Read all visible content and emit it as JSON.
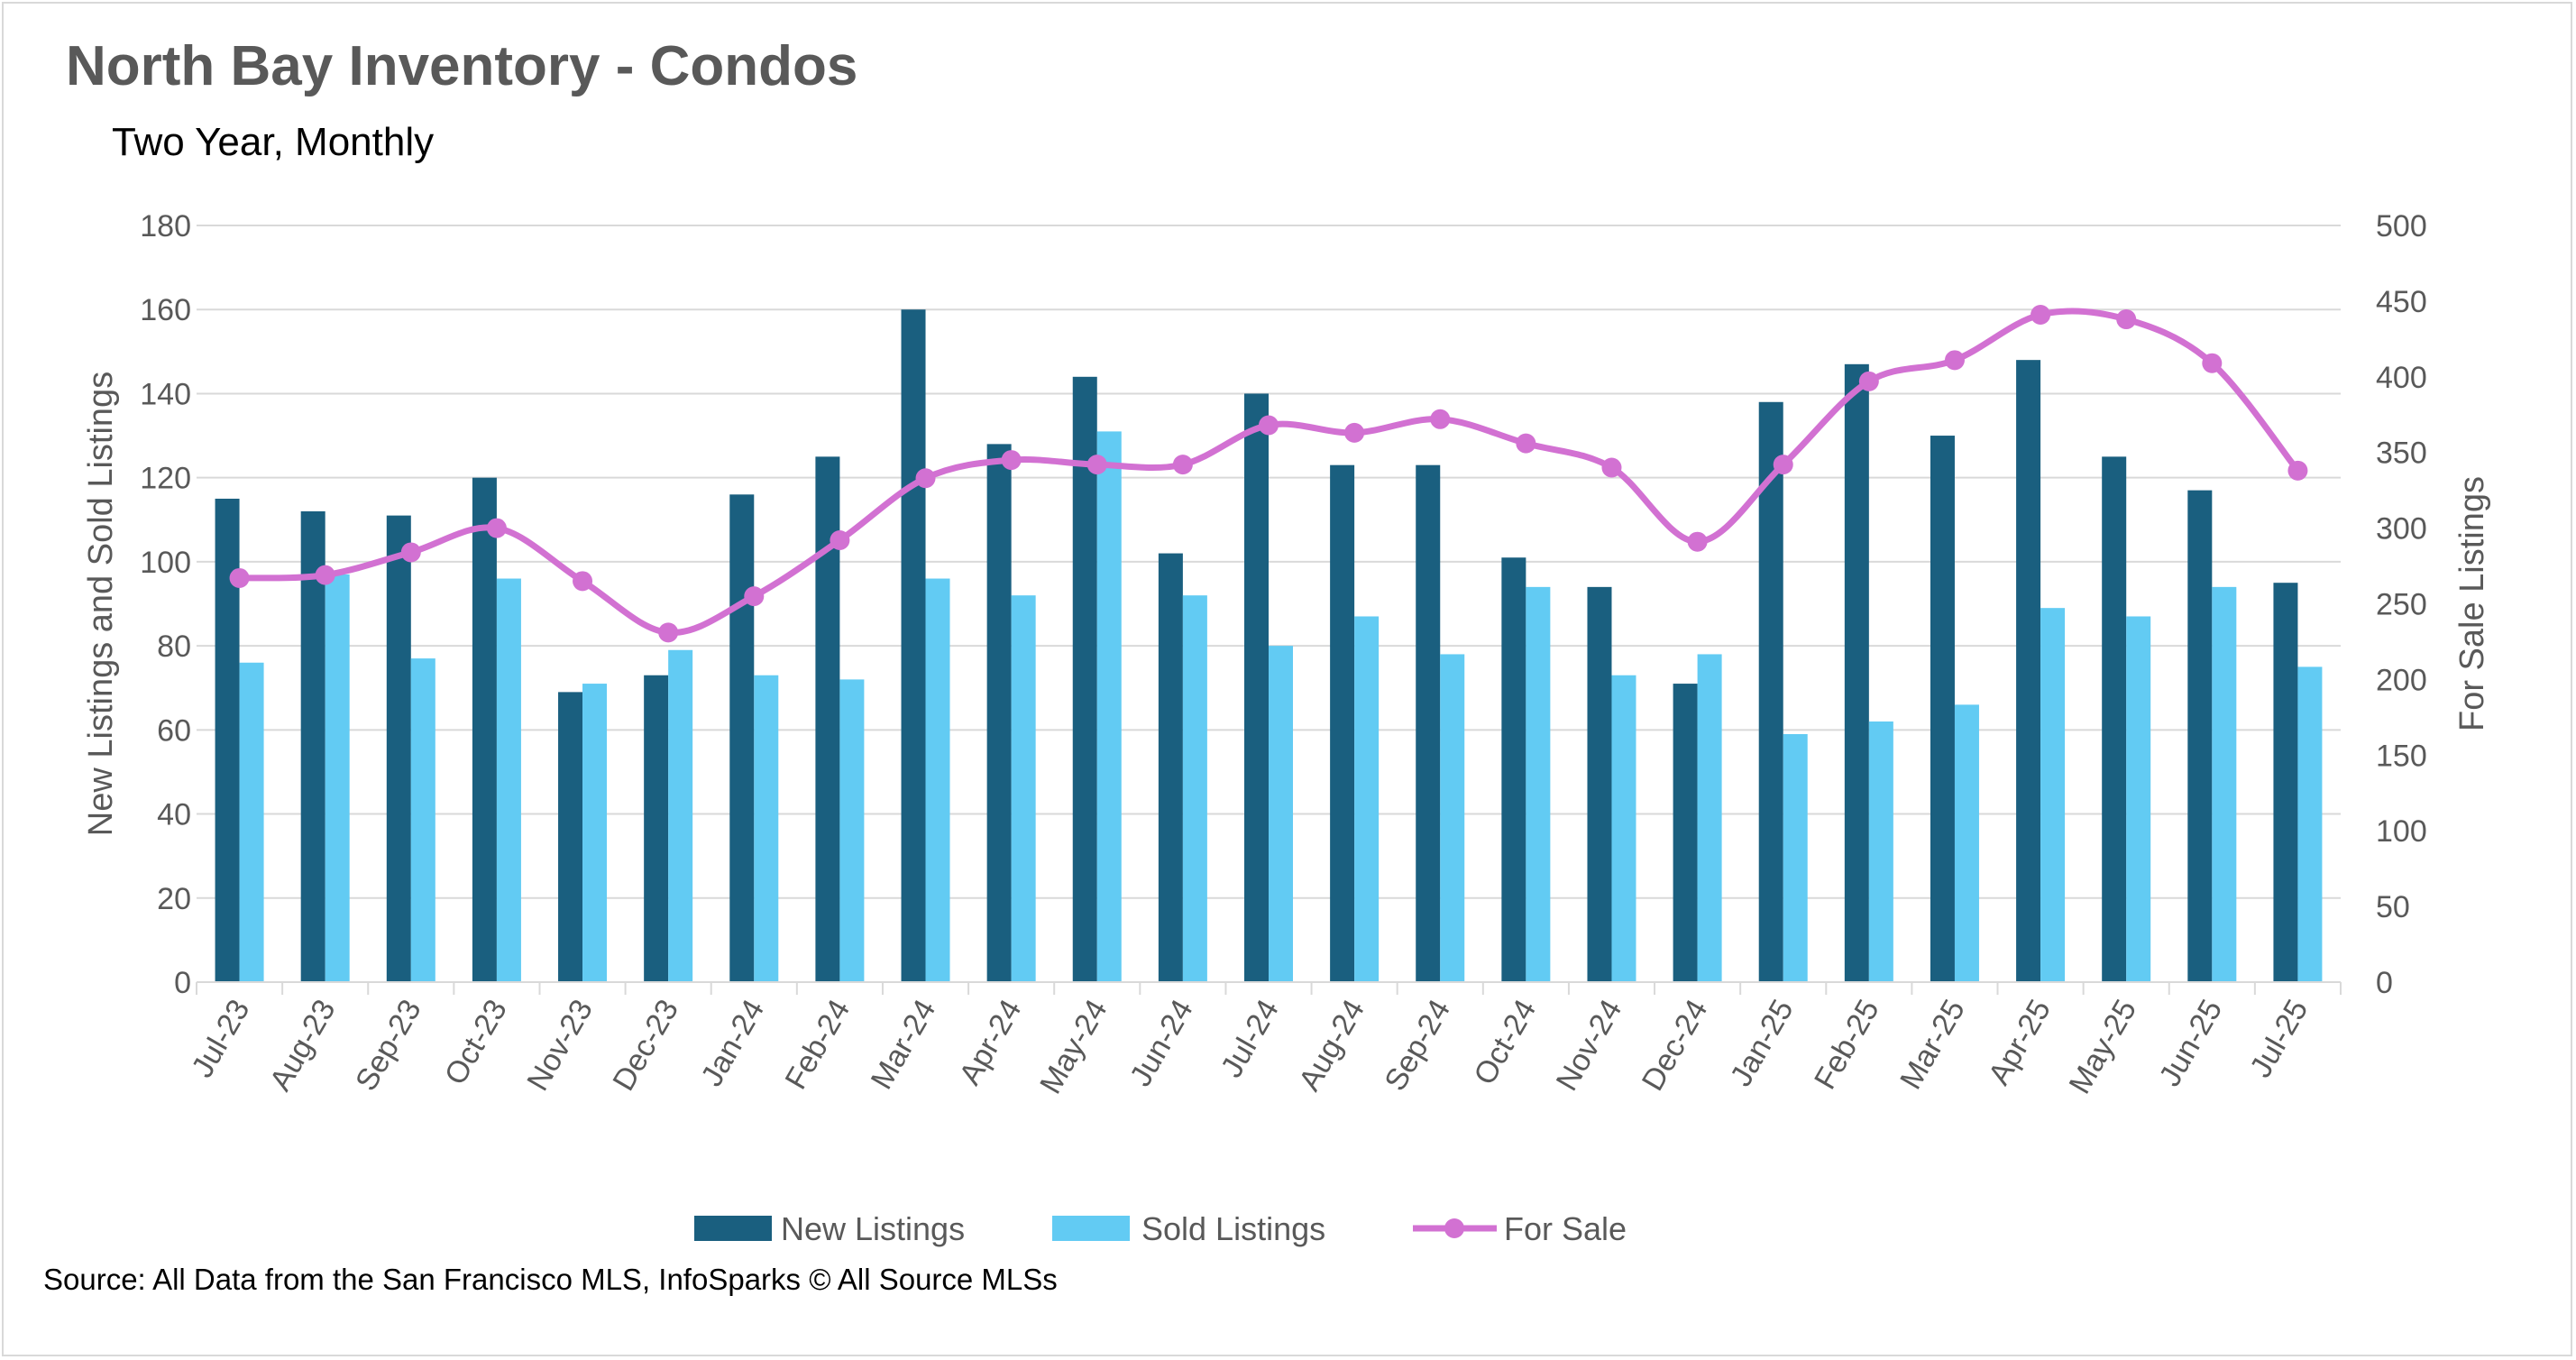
{
  "title": "North Bay Inventory - Condos",
  "subtitle": "Two Year, Monthly",
  "source": "Source: All Data from the San Francisco MLS, InfoSparks © All Source MLSs",
  "colors": {
    "new_listings": "#1a5f7f",
    "sold_listings": "#62cbf3",
    "for_sale": "#d271d2",
    "grid": "#d9d9d9",
    "text": "#595959"
  },
  "chart_data": {
    "type": "bar",
    "title": "North Bay Inventory - Condos",
    "subtitle": "Two Year, Monthly",
    "categories": [
      "Jul-23",
      "Aug-23",
      "Sep-23",
      "Oct-23",
      "Nov-23",
      "Dec-23",
      "Jan-24",
      "Feb-24",
      "Mar-24",
      "Apr-24",
      "May-24",
      "Jun-24",
      "Jul-24",
      "Aug-24",
      "Sep-24",
      "Oct-24",
      "Nov-24",
      "Dec-24",
      "Jan-25",
      "Feb-25",
      "Mar-25",
      "Apr-25",
      "May-25",
      "Jun-25",
      "Jul-25"
    ],
    "series": [
      {
        "name": "New Listings",
        "type": "bar",
        "axis": "left",
        "values": [
          115,
          112,
          111,
          120,
          69,
          73,
          116,
          125,
          160,
          128,
          144,
          102,
          140,
          123,
          123,
          101,
          94,
          71,
          138,
          147,
          130,
          148,
          125,
          117,
          95
        ]
      },
      {
        "name": "Sold Listings",
        "type": "bar",
        "axis": "left",
        "values": [
          76,
          97,
          77,
          96,
          71,
          79,
          73,
          72,
          96,
          92,
          131,
          92,
          80,
          87,
          78,
          94,
          73,
          78,
          59,
          62,
          66,
          89,
          87,
          94,
          75
        ]
      },
      {
        "name": "For Sale",
        "type": "line",
        "axis": "right",
        "smooth": true,
        "markers": true,
        "values": [
          267,
          269,
          284,
          300,
          265,
          231,
          255,
          292,
          333,
          345,
          342,
          342,
          368,
          363,
          372,
          356,
          340,
          291,
          342,
          397,
          411,
          441,
          438,
          409,
          338
        ]
      }
    ],
    "ylabel": "New Listings and Sold Listings",
    "ylim": [
      0,
      180
    ],
    "yticks": [
      "0",
      "20",
      "40",
      "60",
      "80",
      "100",
      "120",
      "140",
      "160",
      "180"
    ],
    "y2label": "For Sale Listings",
    "y2lim": [
      0,
      500
    ],
    "y2ticks": [
      "0",
      "50",
      "100",
      "150",
      "200",
      "250",
      "300",
      "350",
      "400",
      "450",
      "500"
    ],
    "grid": true,
    "legend_position": "bottom"
  }
}
